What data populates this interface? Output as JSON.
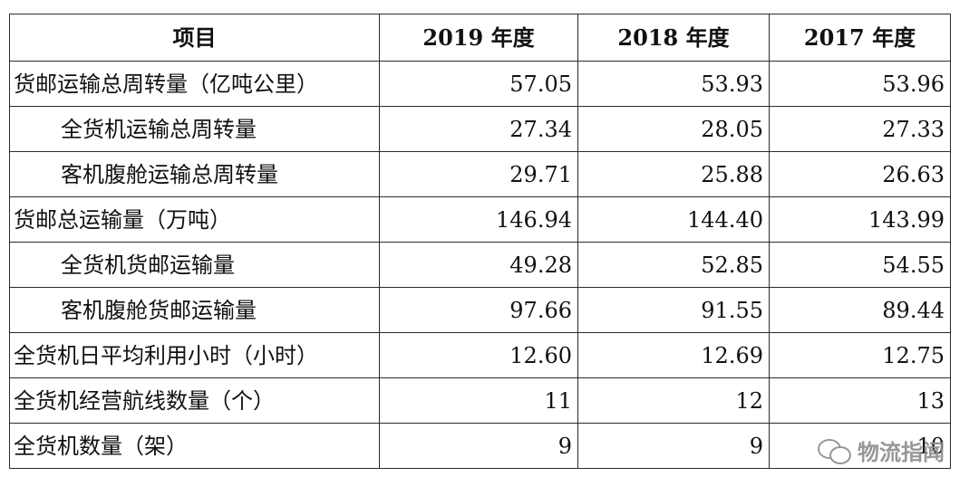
{
  "table": {
    "headers": [
      "项目",
      "2019 年度",
      "2018 年度",
      "2017 年度"
    ],
    "rows": [
      {
        "label": "货邮运输总周转量（亿吨公里）",
        "indent": false,
        "values": [
          "57.05",
          "53.93",
          "53.96"
        ]
      },
      {
        "label": "全货机运输总周转量",
        "indent": true,
        "values": [
          "27.34",
          "28.05",
          "27.33"
        ]
      },
      {
        "label": "客机腹舱运输总周转量",
        "indent": true,
        "values": [
          "29.71",
          "25.88",
          "26.63"
        ]
      },
      {
        "label": "货邮总运输量（万吨）",
        "indent": false,
        "values": [
          "146.94",
          "144.40",
          "143.99"
        ]
      },
      {
        "label": "全货机货邮运输量",
        "indent": true,
        "values": [
          "49.28",
          "52.85",
          "54.55"
        ]
      },
      {
        "label": "客机腹舱货邮运输量",
        "indent": true,
        "values": [
          "97.66",
          "91.55",
          "89.44"
        ]
      },
      {
        "label": "全货机日平均利用小时（小时）",
        "indent": false,
        "values": [
          "12.60",
          "12.69",
          "12.75"
        ]
      },
      {
        "label": "全货机经营航线数量（个）",
        "indent": false,
        "values": [
          "11",
          "12",
          "13"
        ]
      },
      {
        "label": "全货机数量（架）",
        "indent": false,
        "values": [
          "9",
          "9",
          "10"
        ]
      }
    ]
  },
  "watermark": {
    "text": "物流指闻",
    "icon": "wechat-icon"
  }
}
